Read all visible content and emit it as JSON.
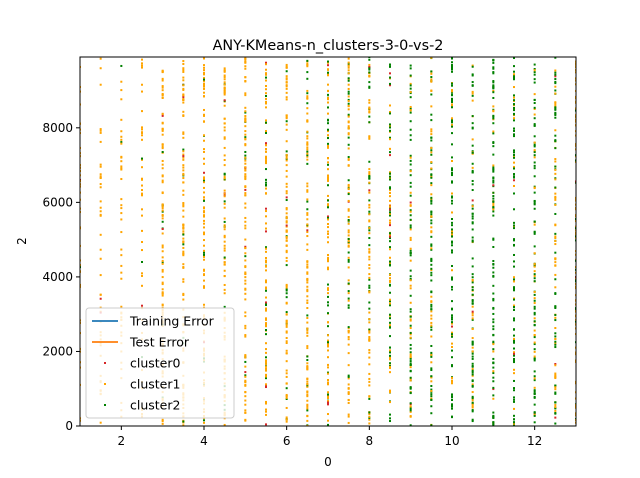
{
  "chart_data": {
    "type": "scatter",
    "title": "ANY-KMeans-n_clusters-3-0-vs-2",
    "xlabel": "0",
    "ylabel": "2",
    "xlim": [
      1,
      13
    ],
    "ylim": [
      0,
      9900
    ],
    "xticks": [
      2,
      4,
      6,
      8,
      10,
      12
    ],
    "yticks": [
      0,
      2000,
      4000,
      6000,
      8000
    ],
    "grid": false,
    "legend_position": "lower-left",
    "x_columns": [
      1.0,
      1.5,
      2.0,
      2.5,
      3.0,
      3.5,
      4.0,
      4.5,
      5.0,
      5.5,
      6.0,
      6.5,
      7.0,
      7.5,
      8.0,
      8.5,
      9.0,
      9.5,
      10.0,
      10.5,
      11.0,
      11.5,
      12.0,
      12.5,
      13.0
    ],
    "column_cluster_share": [
      {
        "x": 1.0,
        "cluster2_fraction": 0.05
      },
      {
        "x": 1.5,
        "cluster2_fraction": 0.1
      },
      {
        "x": 2.0,
        "cluster2_fraction": 0.02
      },
      {
        "x": 2.5,
        "cluster2_fraction": 0.05
      },
      {
        "x": 3.0,
        "cluster2_fraction": 0.05
      },
      {
        "x": 3.5,
        "cluster2_fraction": 0.08
      },
      {
        "x": 4.0,
        "cluster2_fraction": 0.08
      },
      {
        "x": 4.5,
        "cluster2_fraction": 0.1
      },
      {
        "x": 5.0,
        "cluster2_fraction": 0.08
      },
      {
        "x": 5.5,
        "cluster2_fraction": 0.15
      },
      {
        "x": 6.0,
        "cluster2_fraction": 0.2
      },
      {
        "x": 6.5,
        "cluster2_fraction": 0.2
      },
      {
        "x": 7.0,
        "cluster2_fraction": 0.25
      },
      {
        "x": 7.5,
        "cluster2_fraction": 0.3
      },
      {
        "x": 8.0,
        "cluster2_fraction": 0.4
      },
      {
        "x": 8.5,
        "cluster2_fraction": 0.55
      },
      {
        "x": 9.0,
        "cluster2_fraction": 0.7
      },
      {
        "x": 9.5,
        "cluster2_fraction": 0.6
      },
      {
        "x": 10.0,
        "cluster2_fraction": 0.75
      },
      {
        "x": 10.5,
        "cluster2_fraction": 0.65
      },
      {
        "x": 11.0,
        "cluster2_fraction": 0.8
      },
      {
        "x": 11.5,
        "cluster2_fraction": 0.65
      },
      {
        "x": 12.0,
        "cluster2_fraction": 0.7
      },
      {
        "x": 12.5,
        "cluster2_fraction": 0.55
      },
      {
        "x": 13.0,
        "cluster2_fraction": 0.15
      }
    ],
    "series": [
      {
        "name": "cluster0",
        "color": "#d62728",
        "kind": "points"
      },
      {
        "name": "cluster1",
        "color": "#ffa500",
        "kind": "points"
      },
      {
        "name": "cluster2",
        "color": "#008000",
        "kind": "points"
      }
    ],
    "legend": [
      {
        "label": "Training Error",
        "color": "#1f77b4",
        "kind": "line"
      },
      {
        "label": "Test Error",
        "color": "#ff7f0e",
        "kind": "line"
      },
      {
        "label": "cluster0",
        "color": "#d62728",
        "kind": "marker"
      },
      {
        "label": "cluster1",
        "color": "#ffa500",
        "kind": "marker"
      },
      {
        "label": "cluster2",
        "color": "#008000",
        "kind": "marker"
      }
    ]
  }
}
